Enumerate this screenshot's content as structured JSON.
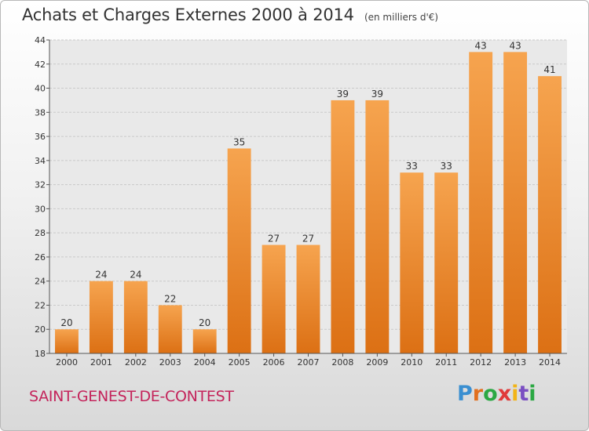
{
  "header": {
    "title": "Achats et Charges Externes 2000 à 2014",
    "subtitle": "(en milliers d'€)"
  },
  "footer": {
    "commune": "SAINT-GENEST-DE-CONTEST",
    "logo_text": "Proxiti",
    "logo_colors": [
      "#3a8fd1",
      "#e2701f",
      "#2ba843",
      "#e03a3a",
      "#f2b417",
      "#7a4ec2",
      "#2ba843"
    ]
  },
  "colors": {
    "bar_light": "#f6a44f",
    "bar_dark": "#dc7014",
    "plot_bg": "#e9e9e9",
    "grid": "#c9c9c9",
    "axis_text": "#333333"
  },
  "chart_data": {
    "type": "bar",
    "categories": [
      "2000",
      "2001",
      "2002",
      "2003",
      "2004",
      "2005",
      "2006",
      "2007",
      "2008",
      "2009",
      "2010",
      "2011",
      "2012",
      "2013",
      "2014"
    ],
    "values": [
      20,
      24,
      24,
      22,
      20,
      35,
      27,
      27,
      39,
      39,
      33,
      33,
      43,
      43,
      41
    ],
    "data_labels": [
      "20",
      "24",
      "24",
      "22",
      "20",
      "35",
      "27",
      "27",
      "39",
      "39",
      "33",
      "33",
      "43",
      "43",
      "41"
    ],
    "yticks": [
      "18",
      "20",
      "22",
      "24",
      "26",
      "28",
      "30",
      "32",
      "34",
      "36",
      "38",
      "40",
      "42",
      "44"
    ],
    "ylim": [
      18,
      44
    ],
    "grid": true,
    "legend": "none"
  }
}
